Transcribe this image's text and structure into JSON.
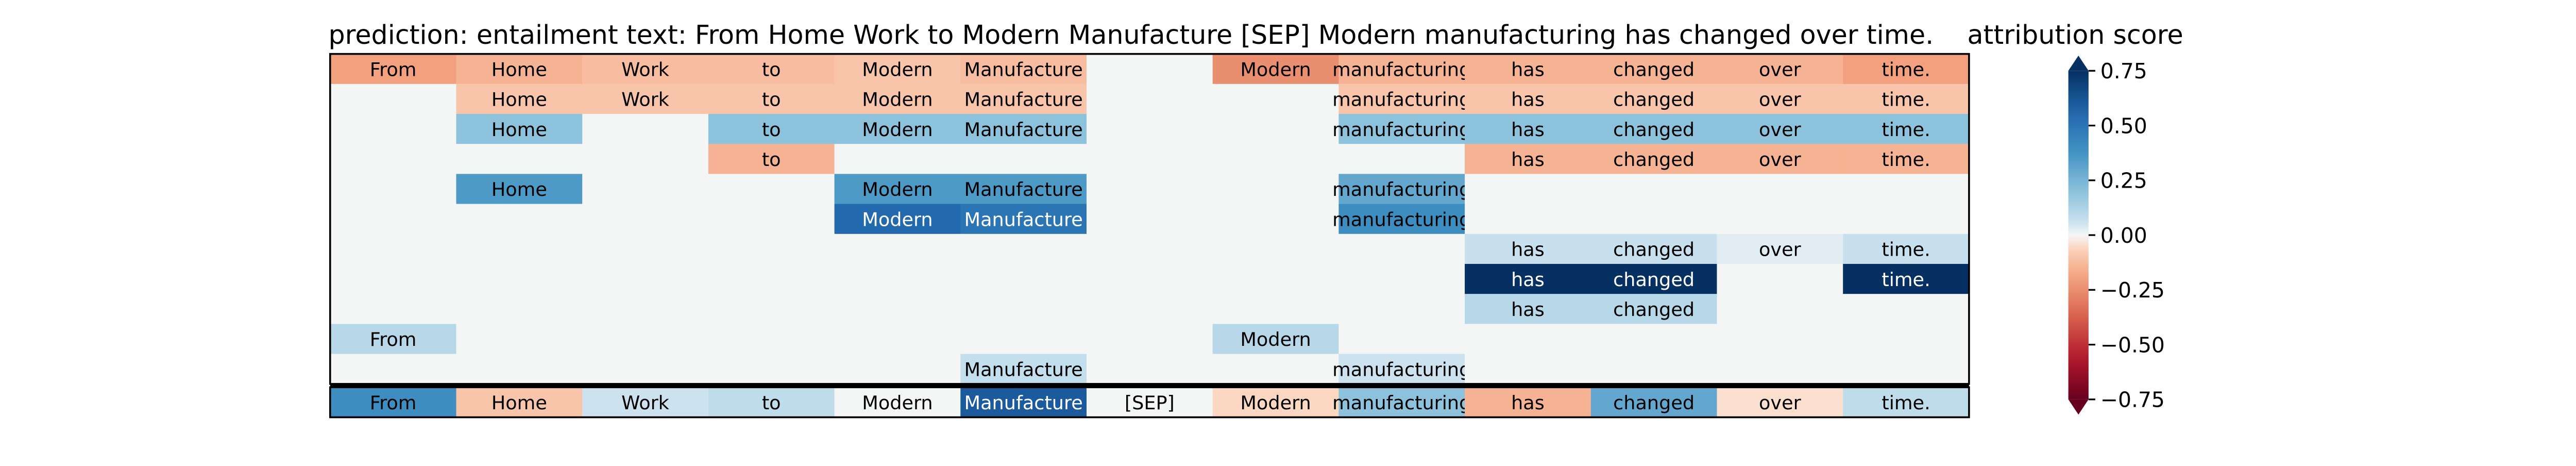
{
  "chart_data": {
    "type": "heatmap",
    "title": "prediction:  entailment     text:  From Home Work to Modern Manufacture [SEP] Modern manufacturing has changed over time.",
    "colorbar_label": "attribution score",
    "colorbar_ticks": [
      0.75,
      0.5,
      0.25,
      0.0,
      -0.25,
      -0.5,
      -0.75
    ],
    "colorbar_tick_labels": [
      "0.75",
      "0.50",
      "0.25",
      "0.00",
      "−0.25",
      "−0.50",
      "−0.75"
    ],
    "vmin": -0.75,
    "vmax": 0.75,
    "colormap": "RdBu",
    "tokens": [
      "From",
      "Home",
      "Work",
      "to",
      "Modern",
      "Manufacture",
      "[SEP]",
      "Modern",
      "manufacturing",
      "has",
      "changed",
      "over",
      "time."
    ],
    "rows": [
      {
        "values": [
          -0.2,
          -0.15,
          -0.12,
          -0.12,
          -0.1,
          -0.12,
          0,
          -0.25,
          -0.15,
          -0.15,
          -0.15,
          -0.15,
          -0.2
        ],
        "labels": [
          "From",
          "Home",
          "Work",
          "to",
          "Modern",
          "Manufacture",
          "",
          "Modern",
          "manufacturing",
          "has",
          "changed",
          "over",
          "time."
        ]
      },
      {
        "values": [
          0,
          -0.1,
          -0.1,
          -0.1,
          -0.1,
          -0.1,
          0,
          0,
          -0.1,
          -0.1,
          -0.1,
          -0.1,
          -0.1
        ],
        "labels": [
          "",
          "Home",
          "Work",
          "to",
          "Modern",
          "Manufacture",
          "",
          "",
          "manufacturing",
          "has",
          "changed",
          "over",
          "time."
        ]
      },
      {
        "values": [
          0,
          0.2,
          0,
          0.2,
          0.2,
          0.2,
          0,
          0,
          0.2,
          0.2,
          0.2,
          0.2,
          0.2
        ],
        "labels": [
          "",
          "Home",
          "",
          "to",
          "Modern",
          "Manufacture",
          "",
          "",
          "manufacturing",
          "has",
          "changed",
          "over",
          "time."
        ]
      },
      {
        "values": [
          0,
          0,
          0,
          -0.15,
          0,
          0,
          0,
          0,
          0,
          -0.15,
          -0.15,
          -0.15,
          -0.15
        ],
        "labels": [
          "",
          "",
          "",
          "to",
          "",
          "",
          "",
          "",
          "",
          "has",
          "changed",
          "over",
          "time."
        ]
      },
      {
        "values": [
          0,
          0.35,
          0,
          0,
          0.35,
          0.35,
          0,
          0,
          0.3,
          0,
          0,
          0,
          0
        ],
        "labels": [
          "",
          "Home",
          "",
          "",
          "Modern",
          "Manufacture",
          "",
          "",
          "manufacturing",
          "",
          "",
          "",
          ""
        ]
      },
      {
        "values": [
          0,
          0,
          0,
          0,
          0.55,
          0.5,
          0,
          0,
          0.4,
          0,
          0,
          0,
          0
        ],
        "labels": [
          "",
          "",
          "",
          "",
          "Modern",
          "Manufacture",
          "",
          "",
          "manufacturing",
          "",
          "",
          "",
          ""
        ]
      },
      {
        "values": [
          0,
          0,
          0,
          0,
          0,
          0,
          0,
          0,
          0,
          0.06,
          0.06,
          0.02,
          0.06
        ],
        "labels": [
          "",
          "",
          "",
          "",
          "",
          "",
          "",
          "",
          "",
          "has",
          "changed",
          "over",
          "time."
        ]
      },
      {
        "values": [
          0,
          0,
          0,
          0,
          0,
          0,
          0,
          0,
          0,
          0.75,
          0.75,
          0,
          0.75
        ],
        "labels": [
          "",
          "",
          "",
          "",
          "",
          "",
          "",
          "",
          "",
          "has",
          "changed",
          "",
          "time."
        ]
      },
      {
        "values": [
          0,
          0,
          0,
          0,
          0,
          0,
          0,
          0,
          0,
          0.1,
          0.1,
          0,
          0
        ],
        "labels": [
          "",
          "",
          "",
          "",
          "",
          "",
          "",
          "",
          "",
          "has",
          "changed",
          "",
          ""
        ]
      },
      {
        "values": [
          0.1,
          0,
          0,
          0,
          0,
          0,
          0,
          0.1,
          0,
          0,
          0,
          0,
          0
        ],
        "labels": [
          "From",
          "",
          "",
          "",
          "",
          "",
          "",
          "Modern",
          "",
          "",
          "",
          "",
          ""
        ]
      },
      {
        "values": [
          0,
          0,
          0,
          0,
          0,
          0.07,
          0,
          0,
          0.05,
          0,
          0,
          0,
          0
        ],
        "labels": [
          "",
          "",
          "",
          "",
          "",
          "Manufacture",
          "",
          "",
          "manufacturing",
          "",
          "",
          "",
          ""
        ]
      }
    ],
    "summary_row": {
      "values": [
        0.4,
        -0.1,
        0.05,
        0.08,
        0,
        0.6,
        0,
        -0.05,
        0.2,
        -0.15,
        0.3,
        -0.03,
        0.08
      ],
      "labels": [
        "From",
        "Home",
        "Work",
        "to",
        "Modern",
        "Manufacture",
        "[SEP]",
        "Modern",
        "manufacturing",
        "has",
        "changed",
        "over",
        "time."
      ]
    }
  }
}
